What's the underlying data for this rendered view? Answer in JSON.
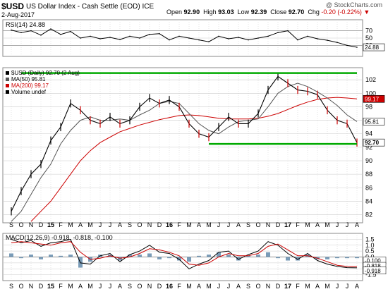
{
  "header": {
    "symbol": "$USD",
    "name": "US Dollar Index - Cash Settle (EOD)",
    "exchange": "ICE",
    "date": "2-Aug-2017",
    "open_label": "Open",
    "open": "92.90",
    "high_label": "High",
    "high": "93.03",
    "low_label": "Low",
    "low": "92.39",
    "close_label": "Close",
    "close": "92.70",
    "chg_label": "Chg",
    "chg": "-0.20 (-0.22%)",
    "brand": "@ StockCharts.com"
  },
  "colors": {
    "price": "#000000",
    "down_bars": "#cc0000",
    "ma50": "#555555",
    "ma200": "#cc0000",
    "support_resistance": "#00aa00",
    "grid": "#cccccc",
    "macd_histogram": "#7a9cb8"
  },
  "chart_data": [
    {
      "type": "line",
      "title": "RSI(14) 24.88",
      "ylim": [
        0,
        100
      ],
      "y_ticks": [
        "30",
        "50",
        "70"
      ],
      "reference_lines": [
        30,
        70
      ],
      "last_value_label": "24.88",
      "x": [
        "S",
        "O",
        "N",
        "D",
        "15",
        "F",
        "M",
        "A",
        "M",
        "J",
        "J",
        "A",
        "S",
        "O",
        "N",
        "D",
        "16",
        "F",
        "M",
        "A",
        "M",
        "J",
        "J",
        "A",
        "S",
        "O",
        "N",
        "D",
        "17",
        "F",
        "M",
        "A",
        "M",
        "J",
        "J",
        "A"
      ],
      "series": [
        {
          "name": "RSI(14)",
          "values": [
            72,
            65,
            70,
            58,
            75,
            60,
            68,
            50,
            55,
            48,
            52,
            46,
            55,
            50,
            60,
            62,
            45,
            55,
            50,
            45,
            40,
            55,
            48,
            52,
            45,
            50,
            55,
            65,
            70,
            45,
            55,
            48,
            44,
            38,
            30,
            25
          ]
        }
      ]
    },
    {
      "type": "line",
      "title": "$USD (Daily) 92.70 (2 Aug)",
      "legend": [
        "$USD (Daily) 92.70 (2 Aug)",
        "MA(50) 95.81",
        "MA(200) 99.17",
        "Volume undef"
      ],
      "legend_placement": "top-left",
      "ylim": [
        80.8,
        103.8
      ],
      "y_ticks": [
        "82",
        "84",
        "86",
        "88",
        "90",
        "92",
        "94",
        "96",
        "98",
        "100",
        "102"
      ],
      "last_value_labels": {
        "ma200": "99.17",
        "ma50": "95.81",
        "price": "92.70"
      },
      "x": [
        "S",
        "O",
        "N",
        "D",
        "15",
        "F",
        "M",
        "A",
        "M",
        "J",
        "J",
        "A",
        "S",
        "O",
        "N",
        "D",
        "16",
        "F",
        "M",
        "A",
        "M",
        "J",
        "J",
        "A",
        "S",
        "O",
        "N",
        "D",
        "17",
        "F",
        "M",
        "A",
        "M",
        "J",
        "J",
        "A"
      ],
      "series": [
        {
          "name": "$USD (Daily) 92.70 (2 Aug)",
          "values": [
            82.5,
            85.5,
            88.0,
            89.5,
            93.0,
            95.0,
            98.5,
            97.5,
            96.0,
            95.5,
            96.5,
            95.5,
            96.0,
            98.0,
            99.3,
            98.5,
            99.0,
            98.0,
            95.5,
            94.0,
            93.5,
            95.0,
            96.5,
            95.5,
            95.5,
            97.0,
            100.5,
            102.5,
            101.5,
            100.5,
            100.3,
            99.8,
            97.5,
            96.0,
            95.5,
            92.7
          ]
        },
        {
          "name": "MA(50) 95.81",
          "values": [
            81.0,
            82.5,
            85.0,
            87.5,
            89.5,
            92.5,
            94.5,
            96.0,
            96.5,
            96.0,
            96.0,
            96.2,
            96.0,
            96.8,
            97.5,
            98.5,
            98.8,
            98.5,
            97.0,
            95.5,
            94.5,
            94.0,
            95.0,
            95.8,
            96.0,
            96.2,
            98.0,
            100.0,
            101.0,
            101.5,
            101.0,
            100.2,
            99.3,
            98.2,
            96.8,
            95.81
          ]
        },
        {
          "name": "MA(200) 99.17",
          "values": [
            null,
            null,
            81.0,
            82.5,
            84.0,
            86.0,
            88.0,
            90.0,
            91.5,
            92.7,
            93.5,
            94.3,
            94.8,
            95.3,
            95.7,
            96.1,
            96.4,
            96.7,
            96.8,
            96.7,
            96.5,
            96.3,
            96.2,
            96.2,
            96.2,
            96.3,
            96.6,
            97.0,
            97.6,
            98.2,
            98.7,
            99.1,
            99.3,
            99.4,
            99.3,
            99.17
          ]
        }
      ],
      "annotations": [
        {
          "type": "horizontal_line",
          "y": 103.0,
          "from": "O",
          "to": "A",
          "color": "#00aa00"
        },
        {
          "type": "horizontal_line",
          "y": 92.5,
          "from": "M",
          "to": "A",
          "color": "#00aa00"
        }
      ]
    },
    {
      "type": "line",
      "title": "MACD(12,26,9) -0.918, -0.818, -0.100",
      "ylim": [
        -2.0,
        2.0
      ],
      "y_ticks": [
        "1.5",
        "1.0",
        "0.5",
        "0.0",
        "-0.5",
        "-1.0",
        "-1.5"
      ],
      "last_value_labels": {
        "macd": "-0.918",
        "signal": "-0.818",
        "histogram": "-0.100"
      },
      "x": [
        "S",
        "O",
        "N",
        "D",
        "15",
        "F",
        "M",
        "A",
        "M",
        "J",
        "J",
        "A",
        "S",
        "O",
        "N",
        "D",
        "16",
        "F",
        "M",
        "A",
        "M",
        "J",
        "J",
        "A",
        "S",
        "O",
        "N",
        "D",
        "17",
        "F",
        "M",
        "A",
        "M",
        "J",
        "J",
        "A"
      ],
      "series": [
        {
          "name": "MACD",
          "values": [
            1.5,
            1.2,
            1.4,
            0.9,
            1.2,
            1.3,
            1.5,
            -0.5,
            -0.6,
            0.1,
            0.3,
            -0.4,
            0.2,
            0.5,
            1.0,
            0.4,
            0.3,
            -0.2,
            -1.0,
            -0.6,
            -0.3,
            0.4,
            0.5,
            -0.2,
            0.2,
            0.5,
            1.3,
            1.0,
            0.3,
            -0.2,
            0.3,
            -0.3,
            -0.6,
            -0.8,
            -0.9,
            -0.918
          ]
        },
        {
          "name": "Signal",
          "values": [
            1.2,
            1.3,
            1.2,
            1.1,
            1.0,
            1.2,
            1.3,
            0.4,
            -0.2,
            -0.1,
            0.1,
            -0.1,
            0.0,
            0.3,
            0.7,
            0.6,
            0.4,
            0.1,
            -0.6,
            -0.7,
            -0.5,
            0.0,
            0.3,
            0.1,
            0.1,
            0.3,
            0.9,
            1.1,
            0.6,
            0.1,
            0.1,
            -0.1,
            -0.4,
            -0.7,
            -0.8,
            -0.818
          ]
        }
      ]
    }
  ]
}
